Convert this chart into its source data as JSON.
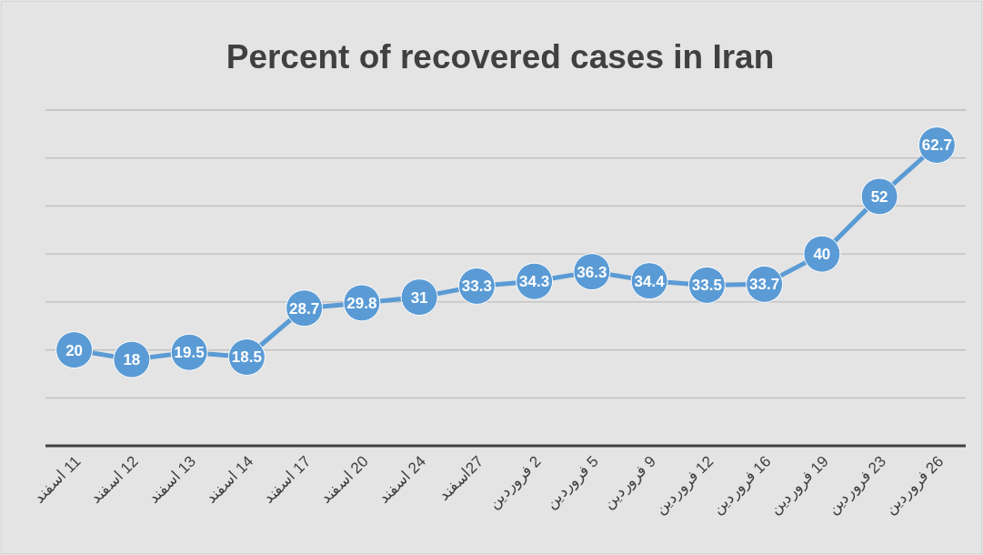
{
  "chart_data": {
    "type": "line",
    "title": "Percent of recovered cases in Iran",
    "categories": [
      "11 اسفند",
      "12 اسفند",
      "13 اسفند",
      "14 اسفند",
      "17 اسفند",
      "20 اسفند",
      "24 اسفند",
      "27اسفند",
      "2 فروردین",
      "5 فروردین",
      "9 فروردین",
      "12 فروردین",
      "16 فروردین",
      "19 فروردین",
      "23 فروردین",
      "26 فروردین"
    ],
    "values": [
      20,
      18,
      19.5,
      18.5,
      28.7,
      29.8,
      31,
      33.3,
      34.3,
      36.3,
      34.4,
      33.5,
      33.7,
      40,
      52,
      62.7
    ],
    "color": "#5b9bd5",
    "ylim": [
      0,
      70
    ],
    "yticks": [
      {
        "value": 0,
        "label": null
      },
      {
        "value": 10,
        "label": null
      },
      {
        "value": 20,
        "label": null
      },
      {
        "value": 30,
        "label": null
      },
      {
        "value": 40,
        "label": null
      },
      {
        "value": 50,
        "label": null
      },
      {
        "value": 60,
        "label": null
      },
      {
        "value": 70,
        "label": null
      }
    ],
    "grid": "y",
    "marker": "circle",
    "data_labels": true,
    "tick_labels": "x"
  }
}
